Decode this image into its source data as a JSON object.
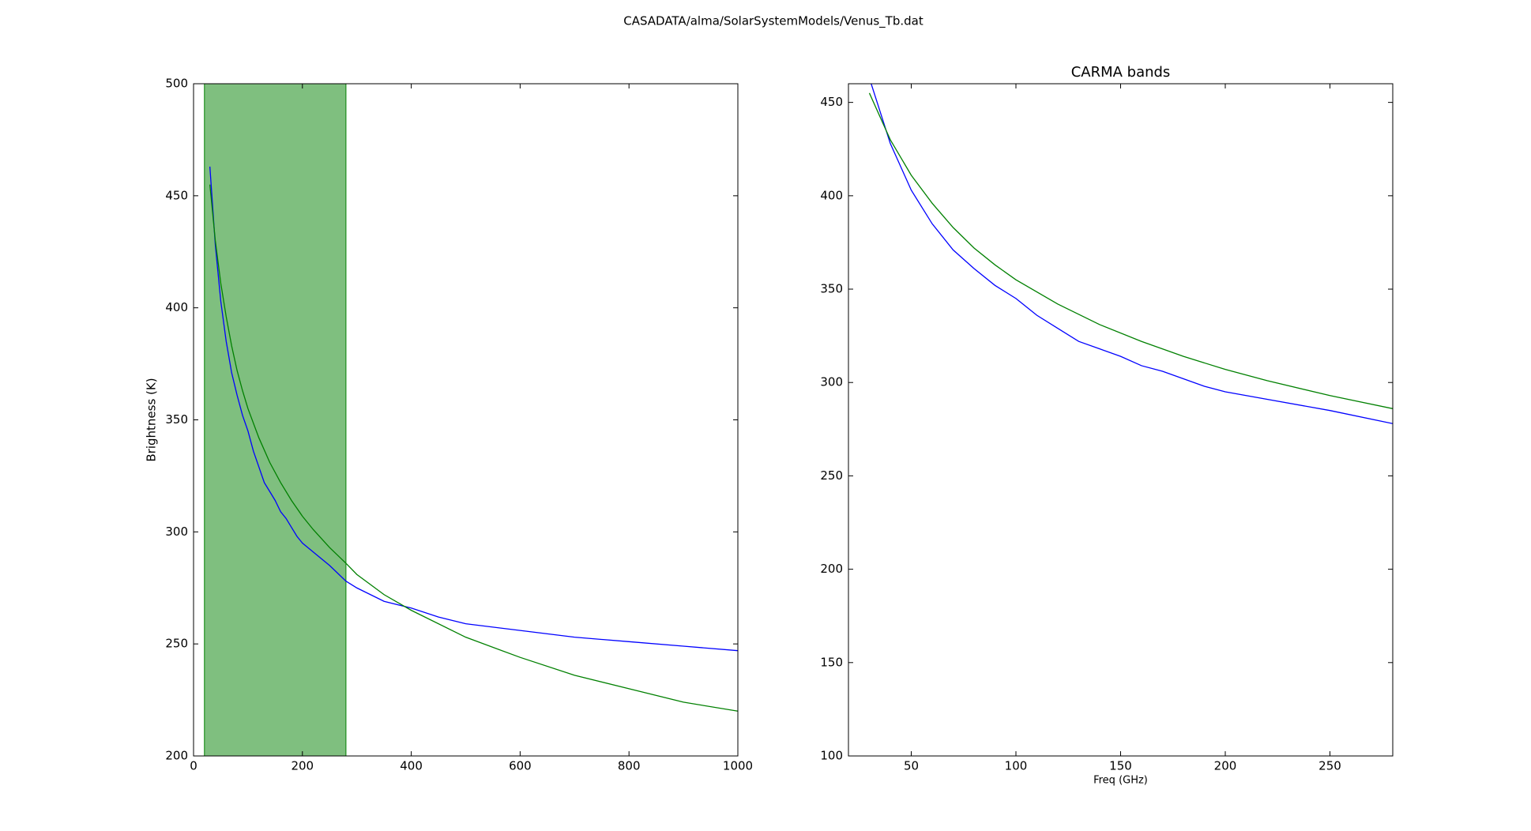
{
  "title": "CASADATA/alma/SolarSystemModels/Venus_Tb.dat",
  "chart_data": [
    {
      "type": "line",
      "ylabel": "Brightness (K)",
      "xlim": [
        0,
        1000
      ],
      "ylim": [
        200,
        500
      ],
      "xticks": [
        0,
        200,
        400,
        600,
        800,
        1000
      ],
      "yticks": [
        200,
        250,
        300,
        350,
        400,
        450,
        500
      ],
      "spans": [
        {
          "x": [
            20,
            280
          ],
          "color": "#008000"
        }
      ],
      "series": [
        {
          "color": "#0000ff",
          "x": [
            30,
            40,
            50,
            60,
            70,
            80,
            90,
            100,
            110,
            120,
            130,
            140,
            150,
            160,
            170,
            180,
            190,
            200,
            220,
            250,
            280,
            300,
            350,
            400,
            450,
            500,
            600,
            700,
            800,
            900,
            1000
          ],
          "values": [
            463,
            428,
            403,
            385,
            371,
            361,
            352,
            345,
            336,
            329,
            322,
            318,
            314,
            309,
            306,
            302,
            298,
            295,
            291,
            285,
            278,
            275,
            269,
            266,
            262,
            259,
            256,
            253,
            251,
            249,
            247
          ]
        },
        {
          "color": "#008000",
          "x": [
            30,
            40,
            50,
            60,
            70,
            80,
            90,
            100,
            120,
            140,
            160,
            180,
            200,
            220,
            250,
            280,
            300,
            350,
            400,
            500,
            600,
            700,
            800,
            900,
            1000
          ],
          "values": [
            455,
            430,
            411,
            396,
            383,
            372,
            363,
            355,
            342,
            331,
            322,
            314,
            307,
            301,
            293,
            286,
            281,
            272,
            265,
            253,
            244,
            236,
            230,
            224,
            220
          ]
        }
      ]
    },
    {
      "type": "line",
      "title": "CARMA bands",
      "xlabel": "Freq (GHz)",
      "xlim": [
        20,
        280
      ],
      "ylim": [
        100,
        460
      ],
      "xticks": [
        50,
        100,
        150,
        200,
        250
      ],
      "yticks": [
        100,
        150,
        200,
        250,
        300,
        350,
        400,
        450
      ],
      "spans": [],
      "series": [
        {
          "color": "#0000ff",
          "x": [
            30,
            40,
            50,
            60,
            70,
            80,
            90,
            100,
            110,
            120,
            130,
            140,
            150,
            160,
            170,
            180,
            190,
            200,
            220,
            250,
            280
          ],
          "values": [
            463,
            428,
            403,
            385,
            371,
            361,
            352,
            345,
            336,
            329,
            322,
            318,
            314,
            309,
            306,
            302,
            298,
            295,
            291,
            285,
            278
          ]
        },
        {
          "color": "#008000",
          "x": [
            30,
            40,
            50,
            60,
            70,
            80,
            90,
            100,
            120,
            140,
            160,
            180,
            200,
            220,
            250,
            280
          ],
          "values": [
            455,
            430,
            411,
            396,
            383,
            372,
            363,
            355,
            342,
            331,
            322,
            314,
            307,
            301,
            293,
            286
          ]
        }
      ]
    }
  ]
}
